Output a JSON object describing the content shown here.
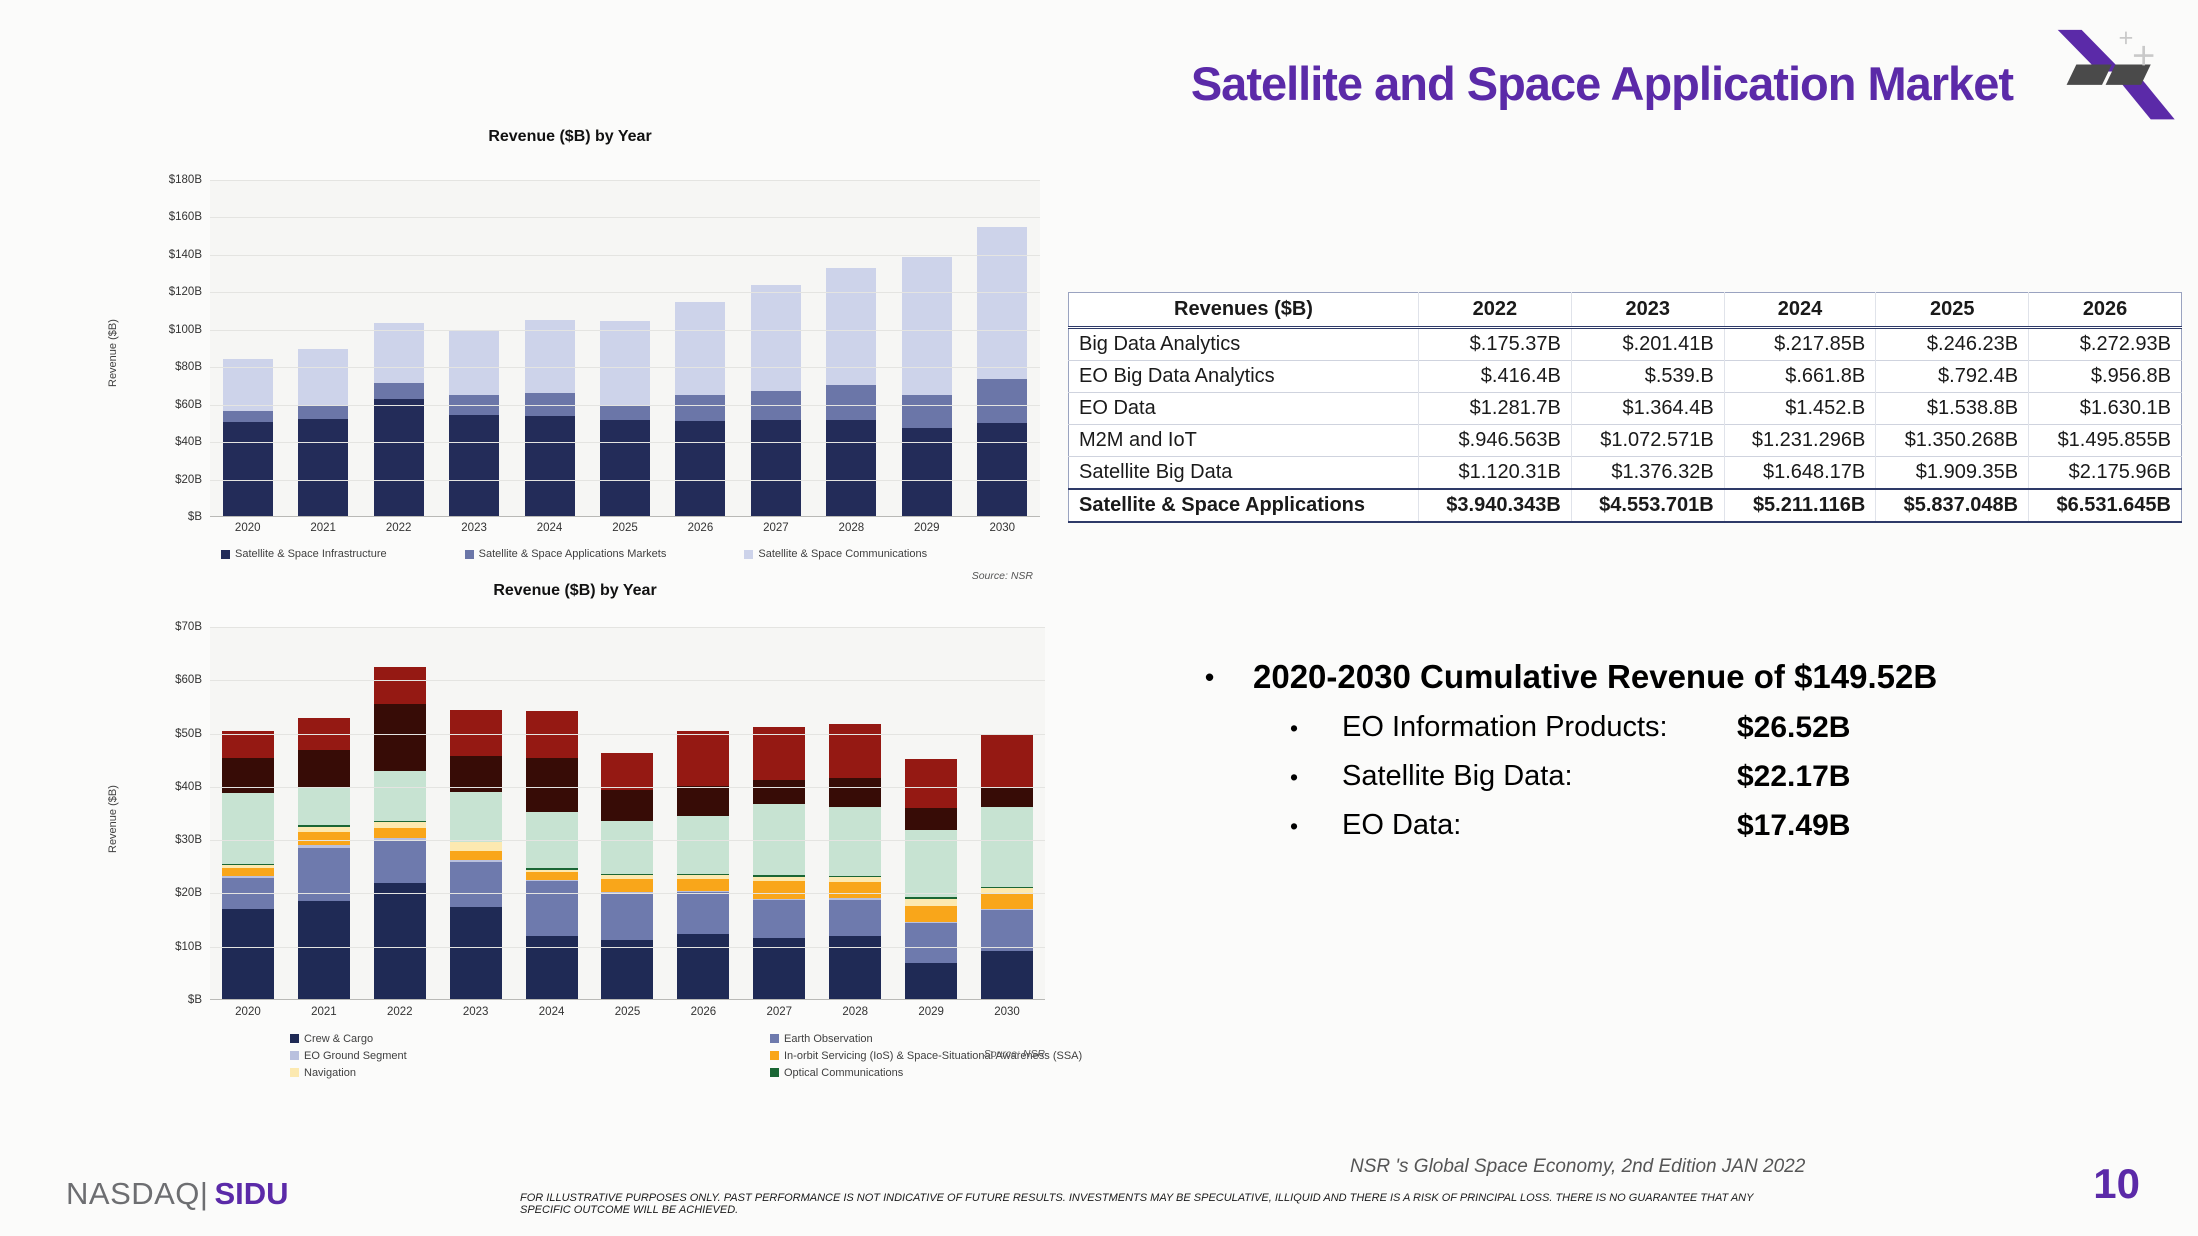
{
  "header": {
    "title": "Satellite and Space Application Market",
    "accent_color": "#5b2aa8",
    "logo": "sidus-satellite-logo"
  },
  "chart_data": [
    {
      "type": "bar",
      "stacked": true,
      "title": "Revenue ($B) by Year",
      "ylabel": "Revenue ($B)",
      "source": "Source: NSR",
      "ymax": 180,
      "grid": true,
      "legend_position": "bottom",
      "y_tick_labels": [
        "$180B",
        "$160B",
        "$140B",
        "$120B",
        "$100B",
        "$80B",
        "$60B",
        "$40B",
        "$20B",
        "$B"
      ],
      "categories": [
        "2020",
        "2021",
        "2022",
        "2023",
        "2024",
        "2025",
        "2026",
        "2027",
        "2028",
        "2029",
        "2030"
      ],
      "series": [
        {
          "name": "Satellite & Space Infrastructure",
          "color": "#232c59",
          "in_legend": true,
          "values": [
            50.5,
            52.5,
            63,
            54.5,
            54,
            52,
            51.5,
            52,
            52,
            47.5,
            50
          ]
        },
        {
          "name": "Satellite & Space Applications Markets",
          "color": "#6b76a8",
          "in_legend": true,
          "values": [
            6,
            7.5,
            8.5,
            10.5,
            12.5,
            8,
            13.5,
            15.5,
            18.5,
            17.5,
            23.5
          ]
        },
        {
          "name": "Satellite & Space Communications",
          "color": "#cdd3ea",
          "in_legend": true,
          "values": [
            28,
            29.5,
            32,
            34.5,
            39,
            44.5,
            50,
            56.5,
            62.5,
            74,
            81.5
          ]
        }
      ],
      "legend_order": [
        0,
        1,
        2
      ]
    },
    {
      "type": "bar",
      "stacked": true,
      "title": "Revenue ($B) by Year",
      "ylabel": "Revenue ($B)",
      "source": "Source: NSR",
      "ymax": 70,
      "grid": true,
      "legend_position": "bottom",
      "y_tick_labels": [
        "$70B",
        "$60B",
        "$50B",
        "$40B",
        "$30B",
        "$20B",
        "$10B",
        "$B"
      ],
      "categories": [
        "2020",
        "2021",
        "2022",
        "2023",
        "2024",
        "2025",
        "2026",
        "2027",
        "2028",
        "2029",
        "2030"
      ],
      "series": [
        {
          "name": "Crew & Cargo",
          "color": "#1f2a55",
          "in_legend": true,
          "values": [
            17,
            18.5,
            22,
            17.5,
            12,
            11.3,
            12.3,
            11.7,
            12,
            7,
            9.2
          ]
        },
        {
          "name": "Earth Observation",
          "color": "#6e7aad",
          "in_legend": true,
          "values": [
            5.9,
            10,
            7.9,
            8.4,
            10.4,
            8.7,
            7.9,
            7.1,
            6.8,
            7.5,
            7.7
          ]
        },
        {
          "name": "EO Ground Segment",
          "color": "#b9c0de",
          "in_legend": true,
          "values": [
            0.3,
            0.5,
            0.6,
            0.4,
            0.2,
            0.2,
            0.2,
            0.2,
            0.3,
            0.2,
            0.2
          ]
        },
        {
          "name": "In-orbit Servicing (IoS) & Space-Situational Awareness (SSA)",
          "color": "#f9a61a",
          "in_legend": true,
          "values": [
            1.6,
            2.5,
            1.8,
            1.7,
            1.4,
            2.5,
            2.3,
            3.4,
            3,
            3,
            3
          ]
        },
        {
          "name": "Navigation",
          "color": "#fce9b0",
          "in_legend": true,
          "values": [
            0.5,
            1,
            1.2,
            1.6,
            0.4,
            0.8,
            0.7,
            0.7,
            1,
            1.3,
            1
          ]
        },
        {
          "name": "Optical Communications",
          "color": "#1a6634",
          "in_legend": true,
          "values": [
            0.15,
            0.3,
            0.15,
            0.15,
            0.3,
            0.15,
            0.3,
            0.3,
            0.15,
            0.3,
            0.2
          ]
        },
        {
          "name": "",
          "color": "#c7e3d2",
          "in_legend": false,
          "values": [
            13.5,
            7.2,
            9.4,
            9.3,
            10.6,
            9.9,
            10.9,
            13.4,
            13,
            12.7,
            15
          ]
        },
        {
          "name": "",
          "color": "#370c06",
          "in_legend": false,
          "values": [
            6.5,
            7,
            12.5,
            6.7,
            10.2,
            5.8,
            5.5,
            4.5,
            5.5,
            4,
            3.5
          ]
        },
        {
          "name": "",
          "color": "#951913",
          "in_legend": false,
          "values": [
            5,
            6,
            6.9,
            8.7,
            8.8,
            7,
            10.4,
            10,
            10,
            9.3,
            10
          ]
        }
      ],
      "legend_order": [
        0,
        2,
        4,
        1,
        3,
        5
      ]
    }
  ],
  "table": {
    "headers": [
      "Revenues ($B)",
      "2022",
      "2023",
      "2024",
      "2025",
      "2026"
    ],
    "rows": [
      [
        "Big Data Analytics",
        "$.175.37B",
        "$.201.41B",
        "$.217.85B",
        "$.246.23B",
        "$.272.93B"
      ],
      [
        "EO Big Data Analytics",
        "$.416.4B",
        "$.539.B",
        "$.661.8B",
        "$.792.4B",
        "$.956.8B"
      ],
      [
        "EO Data",
        "$1.281.7B",
        "$1.364.4B",
        "$1.452.B",
        "$1.538.8B",
        "$1.630.1B"
      ],
      [
        "M2M and IoT",
        "$.946.563B",
        "$1.072.571B",
        "$1.231.296B",
        "$1.350.268B",
        "$1.495.855B"
      ],
      [
        "Satellite Big Data",
        "$1.120.31B",
        "$1.376.32B",
        "$1.648.17B",
        "$1.909.35B",
        "$2.175.96B"
      ]
    ],
    "total_row": [
      "Satellite & Space Applications",
      "$3.940.343B",
      "$4.553.701B",
      "$5.211.116B",
      "$5.837.048B",
      "$6.531.645B"
    ]
  },
  "bullets": {
    "main": "2020-2030 Cumulative Revenue of $149.52B",
    "items": [
      {
        "label": "EO Information Products:",
        "value": "$26.52B"
      },
      {
        "label": "Satellite Big Data:",
        "value": "$22.17B"
      },
      {
        "label": "EO Data:",
        "value": "$17.49B"
      }
    ]
  },
  "footer": {
    "brand_left": "NASDAQ|",
    "brand_right": "SIDU",
    "attribution": "NSR 's Global Space Economy, 2nd Edition  JAN 2022",
    "disclaimer": "FOR ILLUSTRATIVE PURPOSES ONLY. PAST PERFORMANCE IS NOT INDICATIVE OF FUTURE RESULTS. INVESTMENTS MAY BE SPECULATIVE, ILLIQUID AND THERE IS A RISK OF PRINCIPAL LOSS. THERE IS NO GUARANTEE THAT ANY SPECIFIC OUTCOME WILL BE ACHIEVED.",
    "page_number": "10"
  }
}
